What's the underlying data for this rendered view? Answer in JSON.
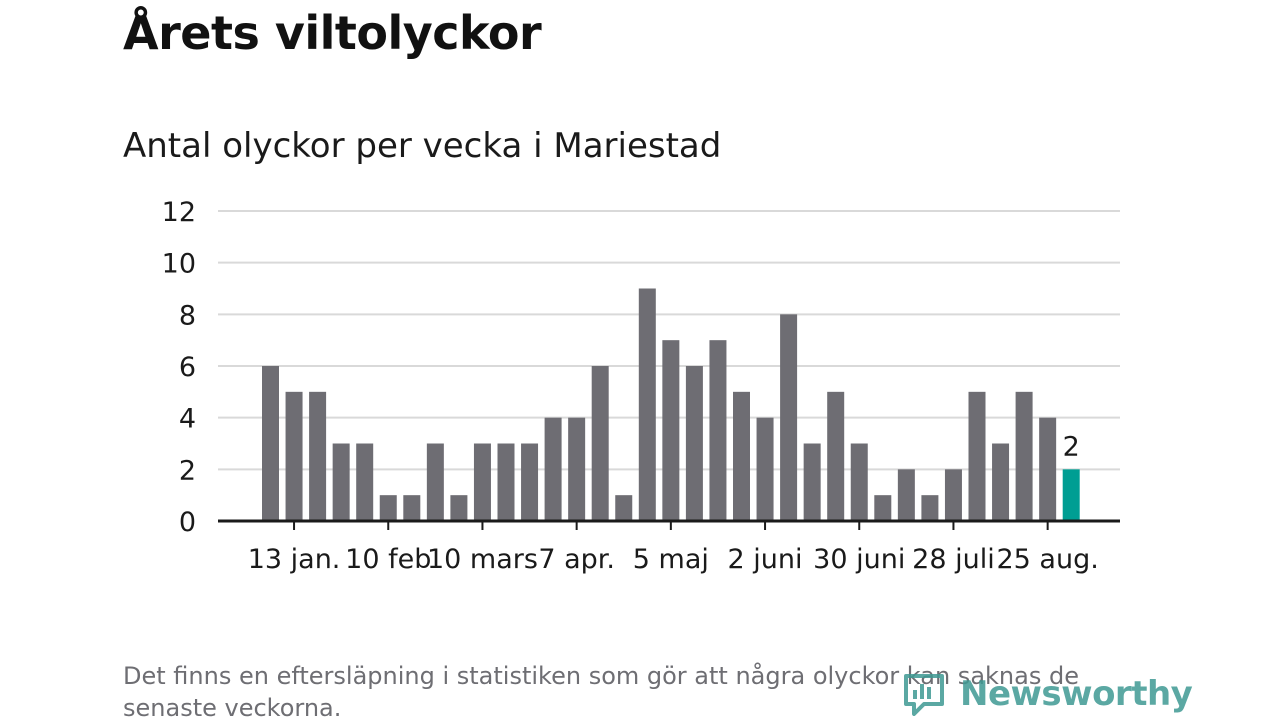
{
  "title": "Årets viltolyckor",
  "subtitle": "Antal olyckor per vecka i Mariestad",
  "footnote": "Det finns en eftersläpning i statistiken som gör att några olyckor kan saknas de senaste veckorna.",
  "brand": {
    "name": "Newsworthy",
    "icon": "newsworthy-logo-icon",
    "color": "#3f9a93"
  },
  "colors": {
    "bar": "#6e6d73",
    "highlight": "#009e93",
    "grid": "#d9d9d9",
    "axis": "#1a1a1a"
  },
  "chart_data": {
    "type": "bar",
    "title": "Antal olyckor per vecka i Mariestad",
    "xlabel": "",
    "ylabel": "",
    "ylim": [
      0,
      12
    ],
    "yticks": [
      0,
      2,
      4,
      6,
      8,
      10,
      12
    ],
    "grid": true,
    "values": [
      6,
      5,
      5,
      3,
      3,
      1,
      1,
      3,
      1,
      3,
      3,
      3,
      4,
      4,
      6,
      1,
      9,
      7,
      6,
      7,
      5,
      4,
      8,
      3,
      5,
      3,
      1,
      2,
      1,
      2,
      5,
      3,
      5,
      4,
      2
    ],
    "highlight_index": 34,
    "highlight_label": "2",
    "xtick_labels": [
      {
        "index": 1,
        "label": "13 jan."
      },
      {
        "index": 5,
        "label": "10 feb"
      },
      {
        "index": 9,
        "label": "10 mars"
      },
      {
        "index": 13,
        "label": "7 apr."
      },
      {
        "index": 17,
        "label": "5 maj"
      },
      {
        "index": 21,
        "label": "2 juni"
      },
      {
        "index": 25,
        "label": "30 juni"
      },
      {
        "index": 29,
        "label": "28 juli"
      },
      {
        "index": 33,
        "label": "25 aug."
      }
    ]
  }
}
